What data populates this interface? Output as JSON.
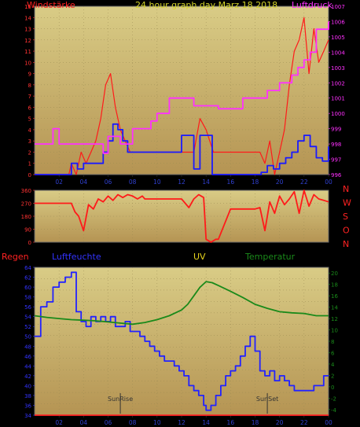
{
  "colors": {
    "background": "#000000",
    "plot_fill_top": "#d9cc86",
    "plot_fill_bottom": "#b59453",
    "grid": "#9a8a52",
    "wind_gust": "#ff1a1a",
    "wind_avg": "#1a1aff",
    "pressure": "#ff30ff",
    "direction": "#ff1a1a",
    "rain": "#ff2222",
    "humidity": "#2222ff",
    "uv": "#e6d31c",
    "temperature": "#1a8a1a",
    "title": "#d4d42a",
    "sun_marker": "#333333"
  },
  "chart_data": [
    {
      "id": "wind",
      "type": "line",
      "title": "24 hour graph day   Marz 18 2018",
      "left_label": "Windstärke",
      "right_label": "Luftdruck",
      "x_ticks": [
        "02",
        "04",
        "06",
        "08",
        "10",
        "12",
        "14",
        "16",
        "18",
        "20",
        "22",
        "00"
      ],
      "x_range": [
        0,
        24
      ],
      "y_left": {
        "range": [
          0,
          15
        ],
        "ticks": [
          "0",
          "1",
          "2",
          "3",
          "4",
          "5",
          "6",
          "7",
          "8",
          "9",
          "10",
          "11",
          "12",
          "13",
          "14",
          "15"
        ]
      },
      "y_right": {
        "range": [
          996,
          1007
        ],
        "ticks": [
          "996",
          "997",
          "998",
          "999",
          "1000",
          "1001",
          "1002",
          "1003",
          "1004",
          "1005",
          "1006",
          "1007"
        ]
      },
      "series": [
        {
          "key": "gust",
          "axis": "left",
          "color": "#ff1a1a",
          "style": "spiky",
          "x": [
            0,
            2.8,
            3.0,
            3.4,
            3.8,
            4.2,
            4.6,
            5.0,
            5.4,
            5.8,
            6.2,
            6.6,
            7.0,
            7.4,
            7.8,
            8.2,
            8.6,
            9,
            10,
            11,
            12,
            12.4,
            13,
            13.5,
            14,
            14.6,
            15,
            16,
            17,
            18,
            18.4,
            18.8,
            19.2,
            19.6,
            20,
            20.4,
            20.8,
            21.2,
            21.6,
            22,
            22.4,
            22.8,
            23.2,
            23.6,
            24
          ],
          "y": [
            0,
            0,
            1,
            0,
            2,
            1,
            2,
            3,
            5,
            8,
            9,
            6,
            4,
            3,
            2,
            2,
            2,
            2,
            2,
            2,
            2,
            2,
            2,
            5,
            4,
            2,
            2,
            2,
            2,
            2,
            2,
            1,
            3,
            0,
            2,
            4,
            8,
            11,
            12,
            14,
            9,
            13,
            10,
            11,
            12
          ]
        },
        {
          "key": "avg",
          "axis": "left",
          "color": "#1a1aff",
          "style": "step",
          "x": [
            0,
            2.7,
            3.0,
            3.5,
            4,
            5,
            5.6,
            6,
            6.4,
            6.8,
            7.2,
            7.6,
            8,
            9,
            10,
            11,
            11.8,
            12,
            12.5,
            13,
            13.5,
            14,
            14.5,
            15,
            16,
            17,
            18,
            18.5,
            19,
            19.5,
            20,
            20.5,
            21,
            21.5,
            22,
            22.5,
            23,
            23.5,
            24
          ],
          "y": [
            0,
            0,
            1,
            0.5,
            1,
            1,
            2,
            3,
            4.5,
            4,
            3,
            2,
            2,
            2,
            2,
            2,
            2,
            3.5,
            3.5,
            0.5,
            3.5,
            3.5,
            0,
            0,
            0,
            0,
            0,
            0.2,
            0.8,
            0.5,
            1,
            1.5,
            2,
            3,
            3.5,
            2.5,
            1.5,
            1.2,
            2.5
          ]
        },
        {
          "key": "pressure",
          "axis": "right",
          "color": "#ff30ff",
          "style": "step",
          "x": [
            0,
            1,
            1.5,
            2,
            3,
            4,
            5,
            5.6,
            6,
            7,
            8,
            9,
            9.5,
            10,
            11,
            12,
            13,
            14,
            15,
            16,
            17,
            18,
            19,
            20,
            20.5,
            21,
            21.5,
            22,
            22.5,
            23,
            24
          ],
          "y": [
            998,
            998,
            999,
            998,
            998,
            998,
            998,
            997.4,
            998.5,
            998,
            999,
            999,
            999.5,
            1000,
            1001,
            1001,
            1000.5,
            1000.5,
            1000.3,
            1000.3,
            1001,
            1001,
            1001.5,
            1002,
            1002,
            1002.5,
            1003,
            1003.5,
            1004,
            1005.5,
            1006
          ]
        }
      ]
    },
    {
      "id": "direction",
      "type": "line",
      "right_labels": [
        "N",
        "W",
        "S",
        "O",
        "N"
      ],
      "x_range": [
        0,
        24
      ],
      "y_left": {
        "range": [
          0,
          360
        ],
        "ticks": [
          "0",
          "90",
          "180",
          "270",
          "360"
        ]
      },
      "series": [
        {
          "key": "direction",
          "color": "#ff1a1a",
          "x": [
            0,
            2,
            3,
            3.3,
            3.6,
            4,
            4.4,
            4.8,
            5.2,
            5.6,
            6,
            6.4,
            6.8,
            7.2,
            7.6,
            8,
            8.4,
            8.8,
            9,
            10,
            11,
            12,
            12.6,
            13,
            13.4,
            13.8,
            14,
            14.4,
            14.8,
            15,
            16,
            17,
            18,
            18.4,
            18.8,
            19.2,
            19.6,
            20,
            20.4,
            20.8,
            21.2,
            21.6,
            22,
            22.4,
            22.8,
            23.2,
            23.6,
            24
          ],
          "y": [
            270,
            270,
            270,
            210,
            180,
            80,
            260,
            230,
            300,
            280,
            320,
            290,
            330,
            310,
            330,
            320,
            300,
            320,
            300,
            300,
            300,
            300,
            240,
            300,
            330,
            310,
            20,
            0,
            20,
            20,
            230,
            230,
            230,
            240,
            80,
            280,
            200,
            320,
            260,
            300,
            350,
            200,
            360,
            250,
            330,
            300,
            290,
            280
          ]
        }
      ]
    },
    {
      "id": "climate",
      "type": "line",
      "labels": {
        "rain": "Regen",
        "humidity": "Luftfeuchte",
        "uv": "UV",
        "temperature": "Temperatur"
      },
      "x_ticks": [
        "02",
        "04",
        "06",
        "08",
        "10",
        "12",
        "14",
        "16",
        "18",
        "20",
        "22",
        "00"
      ],
      "x_range": [
        0,
        24
      ],
      "y_left": {
        "range": [
          34,
          64
        ],
        "ticks": [
          "34",
          "36",
          "38",
          "40",
          "42",
          "44",
          "46",
          "48",
          "50",
          "52",
          "54",
          "56",
          "58",
          "60",
          "62",
          "64"
        ]
      },
      "y_right": {
        "range": [
          -5,
          21
        ],
        "ticks": [
          "-4",
          "-2",
          "0",
          "2",
          "4",
          "6",
          "8",
          "10",
          "12",
          "14",
          "16",
          "18",
          "20"
        ]
      },
      "annotations": [
        {
          "x": 7,
          "label": "SunRise"
        },
        {
          "x": 19,
          "label": "SunSet"
        }
      ],
      "series": [
        {
          "key": "humidity",
          "axis": "left",
          "color": "#2222ff",
          "style": "step",
          "x": [
            0,
            0.5,
            1,
            1.5,
            2,
            2.5,
            3,
            3.4,
            3.8,
            4.2,
            4.6,
            5,
            5.4,
            5.8,
            6.2,
            6.6,
            7,
            7.4,
            7.8,
            8.2,
            8.6,
            9,
            9.4,
            9.8,
            10.2,
            10.6,
            11,
            11.4,
            11.8,
            12.2,
            12.6,
            13,
            13.4,
            13.8,
            14,
            14.4,
            14.8,
            15.2,
            15.6,
            16,
            16.4,
            16.8,
            17.2,
            17.6,
            18,
            18.4,
            18.8,
            19.2,
            19.6,
            20,
            20.4,
            20.8,
            21.2,
            21.6,
            22,
            22.4,
            22.8,
            23.2,
            23.6,
            24
          ],
          "y": [
            50,
            56,
            57,
            60,
            61,
            62,
            63,
            55,
            53,
            52,
            54,
            53,
            54,
            53,
            54,
            52,
            52,
            53,
            51,
            51,
            50,
            49,
            48,
            47,
            46,
            45,
            45,
            44,
            43,
            42,
            40,
            39,
            38,
            36,
            35,
            36,
            38,
            40,
            42,
            43,
            44,
            46,
            48,
            50,
            47,
            43,
            42,
            43,
            41,
            42,
            41,
            40,
            39,
            39,
            39,
            39,
            40,
            40,
            42,
            42
          ]
        },
        {
          "key": "temperature",
          "axis": "right",
          "color": "#1a8a1a",
          "style": "line",
          "x": [
            0,
            1,
            2,
            3,
            4,
            5,
            6,
            7,
            8,
            9,
            10,
            11,
            12,
            12.5,
            13,
            13.5,
            14,
            14.5,
            15,
            16,
            17,
            18,
            19,
            20,
            21,
            22,
            23,
            24
          ],
          "y": [
            12.5,
            12.2,
            12,
            11.8,
            11.7,
            11.6,
            11.4,
            11.2,
            11,
            11.3,
            11.8,
            12.5,
            13.5,
            14.5,
            16,
            17.5,
            18.5,
            18.3,
            17.8,
            16.8,
            15.7,
            14.5,
            13.8,
            13.2,
            13,
            12.9,
            12.5,
            12.5
          ]
        },
        {
          "key": "rain",
          "axis": "left",
          "color": "#ff2222",
          "style": "line",
          "x": [
            0,
            24
          ],
          "y": [
            34,
            34
          ]
        }
      ]
    }
  ]
}
